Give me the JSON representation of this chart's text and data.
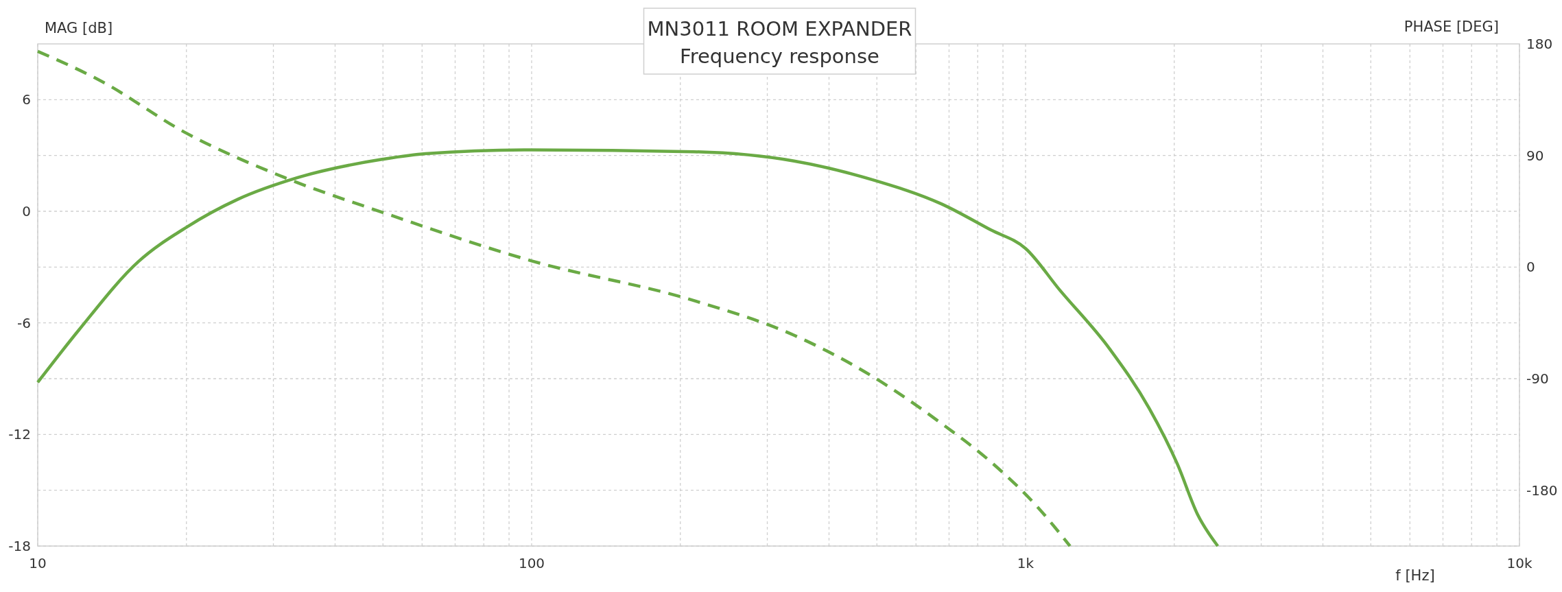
{
  "chart_data": {
    "type": "line",
    "title": "MN3011 ROOM EXPANDER",
    "subtitle": "Frequency response",
    "xlabel": "f [Hz]",
    "ylabel": "MAG [dB]",
    "y2label": "PHASE [DEG]",
    "log": "x",
    "grid": true,
    "xlim": [
      10,
      10000
    ],
    "xticks": [
      10,
      {
        "value": 20,
        "label": null
      },
      {
        "value": 30,
        "label": null
      },
      {
        "value": 40,
        "label": null
      },
      {
        "value": 50,
        "label": null
      },
      {
        "value": 60,
        "label": null
      },
      {
        "value": 70,
        "label": null
      },
      {
        "value": 80,
        "label": null
      },
      {
        "value": 90,
        "label": null
      },
      100,
      {
        "value": 200,
        "label": null
      },
      {
        "value": 300,
        "label": null
      },
      {
        "value": 400,
        "label": null
      },
      {
        "value": 500,
        "label": null
      },
      {
        "value": 600,
        "label": null
      },
      {
        "value": 700,
        "label": null
      },
      {
        "value": 800,
        "label": null
      },
      {
        "value": 900,
        "label": null
      },
      {
        "value": 1000,
        "label": "1k"
      },
      {
        "value": 2000,
        "label": null
      },
      {
        "value": 3000,
        "label": null
      },
      {
        "value": 4000,
        "label": null
      },
      {
        "value": 5000,
        "label": null
      },
      {
        "value": 6000,
        "label": null
      },
      {
        "value": 7000,
        "label": null
      },
      {
        "value": 8000,
        "label": null
      },
      {
        "value": 9000,
        "label": null
      },
      {
        "value": 10000,
        "label": "10k"
      }
    ],
    "ylim": [
      -18,
      9
    ],
    "yticks": [
      -18,
      {
        "value": -15,
        "label": null
      },
      -12,
      {
        "value": -9,
        "label": null
      },
      -6,
      {
        "value": -3,
        "label": null
      },
      0,
      {
        "value": 3,
        "label": null
      },
      6
    ],
    "y2lim": [
      -225,
      180
    ],
    "y2ticks": [
      -180,
      -90,
      0,
      90,
      180
    ],
    "series": [
      {
        "color": "#6aaa45",
        "line_style": "solid",
        "x": [
          10,
          12.1,
          16,
          20,
          25.4,
          33.5,
          50,
          61,
          100,
          213,
          340,
          489,
          675,
          850,
          1000,
          1170,
          1480,
          1780,
          2030,
          2230,
          2450
        ],
        "values": [
          -9.2,
          -6.4,
          -2.7,
          -0.86,
          0.64,
          1.8,
          2.8,
          3.1,
          3.3,
          3.2,
          2.7,
          1.7,
          0.4,
          -1.0,
          -2.0,
          -4.2,
          -7.4,
          -10.6,
          -13.6,
          -16.3,
          -18
        ]
      },
      {
        "color": "#6aaa45",
        "line_style": "dashed",
        "axis": "y2",
        "x": [
          10,
          13.3,
          20,
          31.7,
          50,
          100,
          213,
          340,
          489,
          675,
          850,
          1060,
          1230
        ],
        "values": [
          174,
          151,
          108,
          72,
          44,
          5,
          -27,
          -55,
          -88,
          -126,
          -157,
          -194,
          -225
        ]
      }
    ]
  }
}
